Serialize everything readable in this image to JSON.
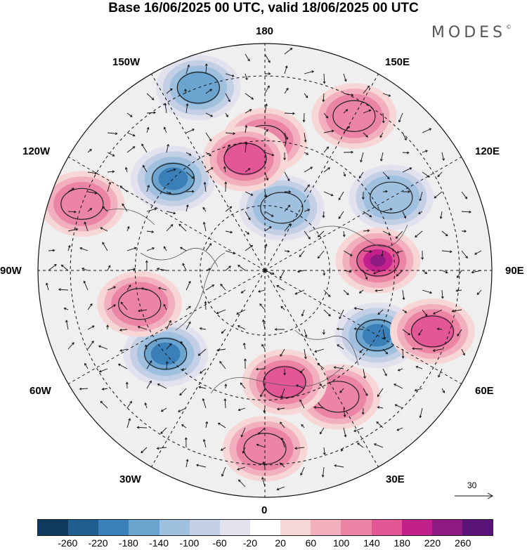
{
  "title": "Base 16/06/2025 00 UTC, valid 18/06/2025 00 UTC",
  "brand": "MODES",
  "brand_mark": "©",
  "longitude_labels": {
    "top": "180",
    "bottom": "0",
    "left": "90W",
    "right": "90E",
    "upper_left_outer": "150W",
    "upper_left_inner": "120W",
    "upper_right_outer": "150E",
    "upper_right_inner": "120E",
    "lower_left_inner": "60W",
    "lower_left_outer": "30W",
    "lower_right_inner": "60E",
    "lower_right_outer": "30E"
  },
  "vector_reference": "30",
  "colorbar": {
    "colors": [
      "#0d3a5e",
      "#1f5f8f",
      "#3a7fb8",
      "#6aa4cf",
      "#9fc0de",
      "#c3cfe5",
      "#e2e2ef",
      "#ffffff",
      "#f7d6d6",
      "#f2b0be",
      "#ec85a5",
      "#e45797",
      "#c2208a",
      "#8e1a82",
      "#5a1477"
    ],
    "labels": [
      "-260",
      "-220",
      "-180",
      "-140",
      "-100",
      "-60",
      "-20",
      "20",
      "60",
      "100",
      "140",
      "180",
      "220",
      "260"
    ]
  },
  "anomaly_blobs": [
    {
      "lon": 180,
      "colat": 40,
      "sign": 1,
      "level": 2
    },
    {
      "lon": 150,
      "colat": 55,
      "sign": 1,
      "level": 2
    },
    {
      "lon": 120,
      "colat": 45,
      "sign": -1,
      "level": 2
    },
    {
      "lon": 95,
      "colat": 35,
      "sign": 1,
      "level": 5
    },
    {
      "lon": 60,
      "colat": 40,
      "sign": -1,
      "level": 4
    },
    {
      "lon": 70,
      "colat": 55,
      "sign": 1,
      "level": 3
    },
    {
      "lon": 30,
      "colat": 45,
      "sign": 1,
      "level": 2
    },
    {
      "lon": -50,
      "colat": 40,
      "sign": -1,
      "level": 4
    },
    {
      "lon": -135,
      "colat": 40,
      "sign": -1,
      "level": 4
    },
    {
      "lon": -110,
      "colat": 60,
      "sign": 1,
      "level": 2
    },
    {
      "lon": -75,
      "colat": 40,
      "sign": 1,
      "level": 2
    },
    {
      "lon": -160,
      "colat": 60,
      "sign": -1,
      "level": 3
    },
    {
      "lon": 165,
      "colat": 20,
      "sign": -1,
      "level": 2
    },
    {
      "lon": -170,
      "colat": 35,
      "sign": 1,
      "level": 3
    },
    {
      "lon": 10,
      "colat": 35,
      "sign": 1,
      "level": 3
    },
    {
      "lon": 0,
      "colat": 55,
      "sign": 1,
      "level": 2
    }
  ]
}
